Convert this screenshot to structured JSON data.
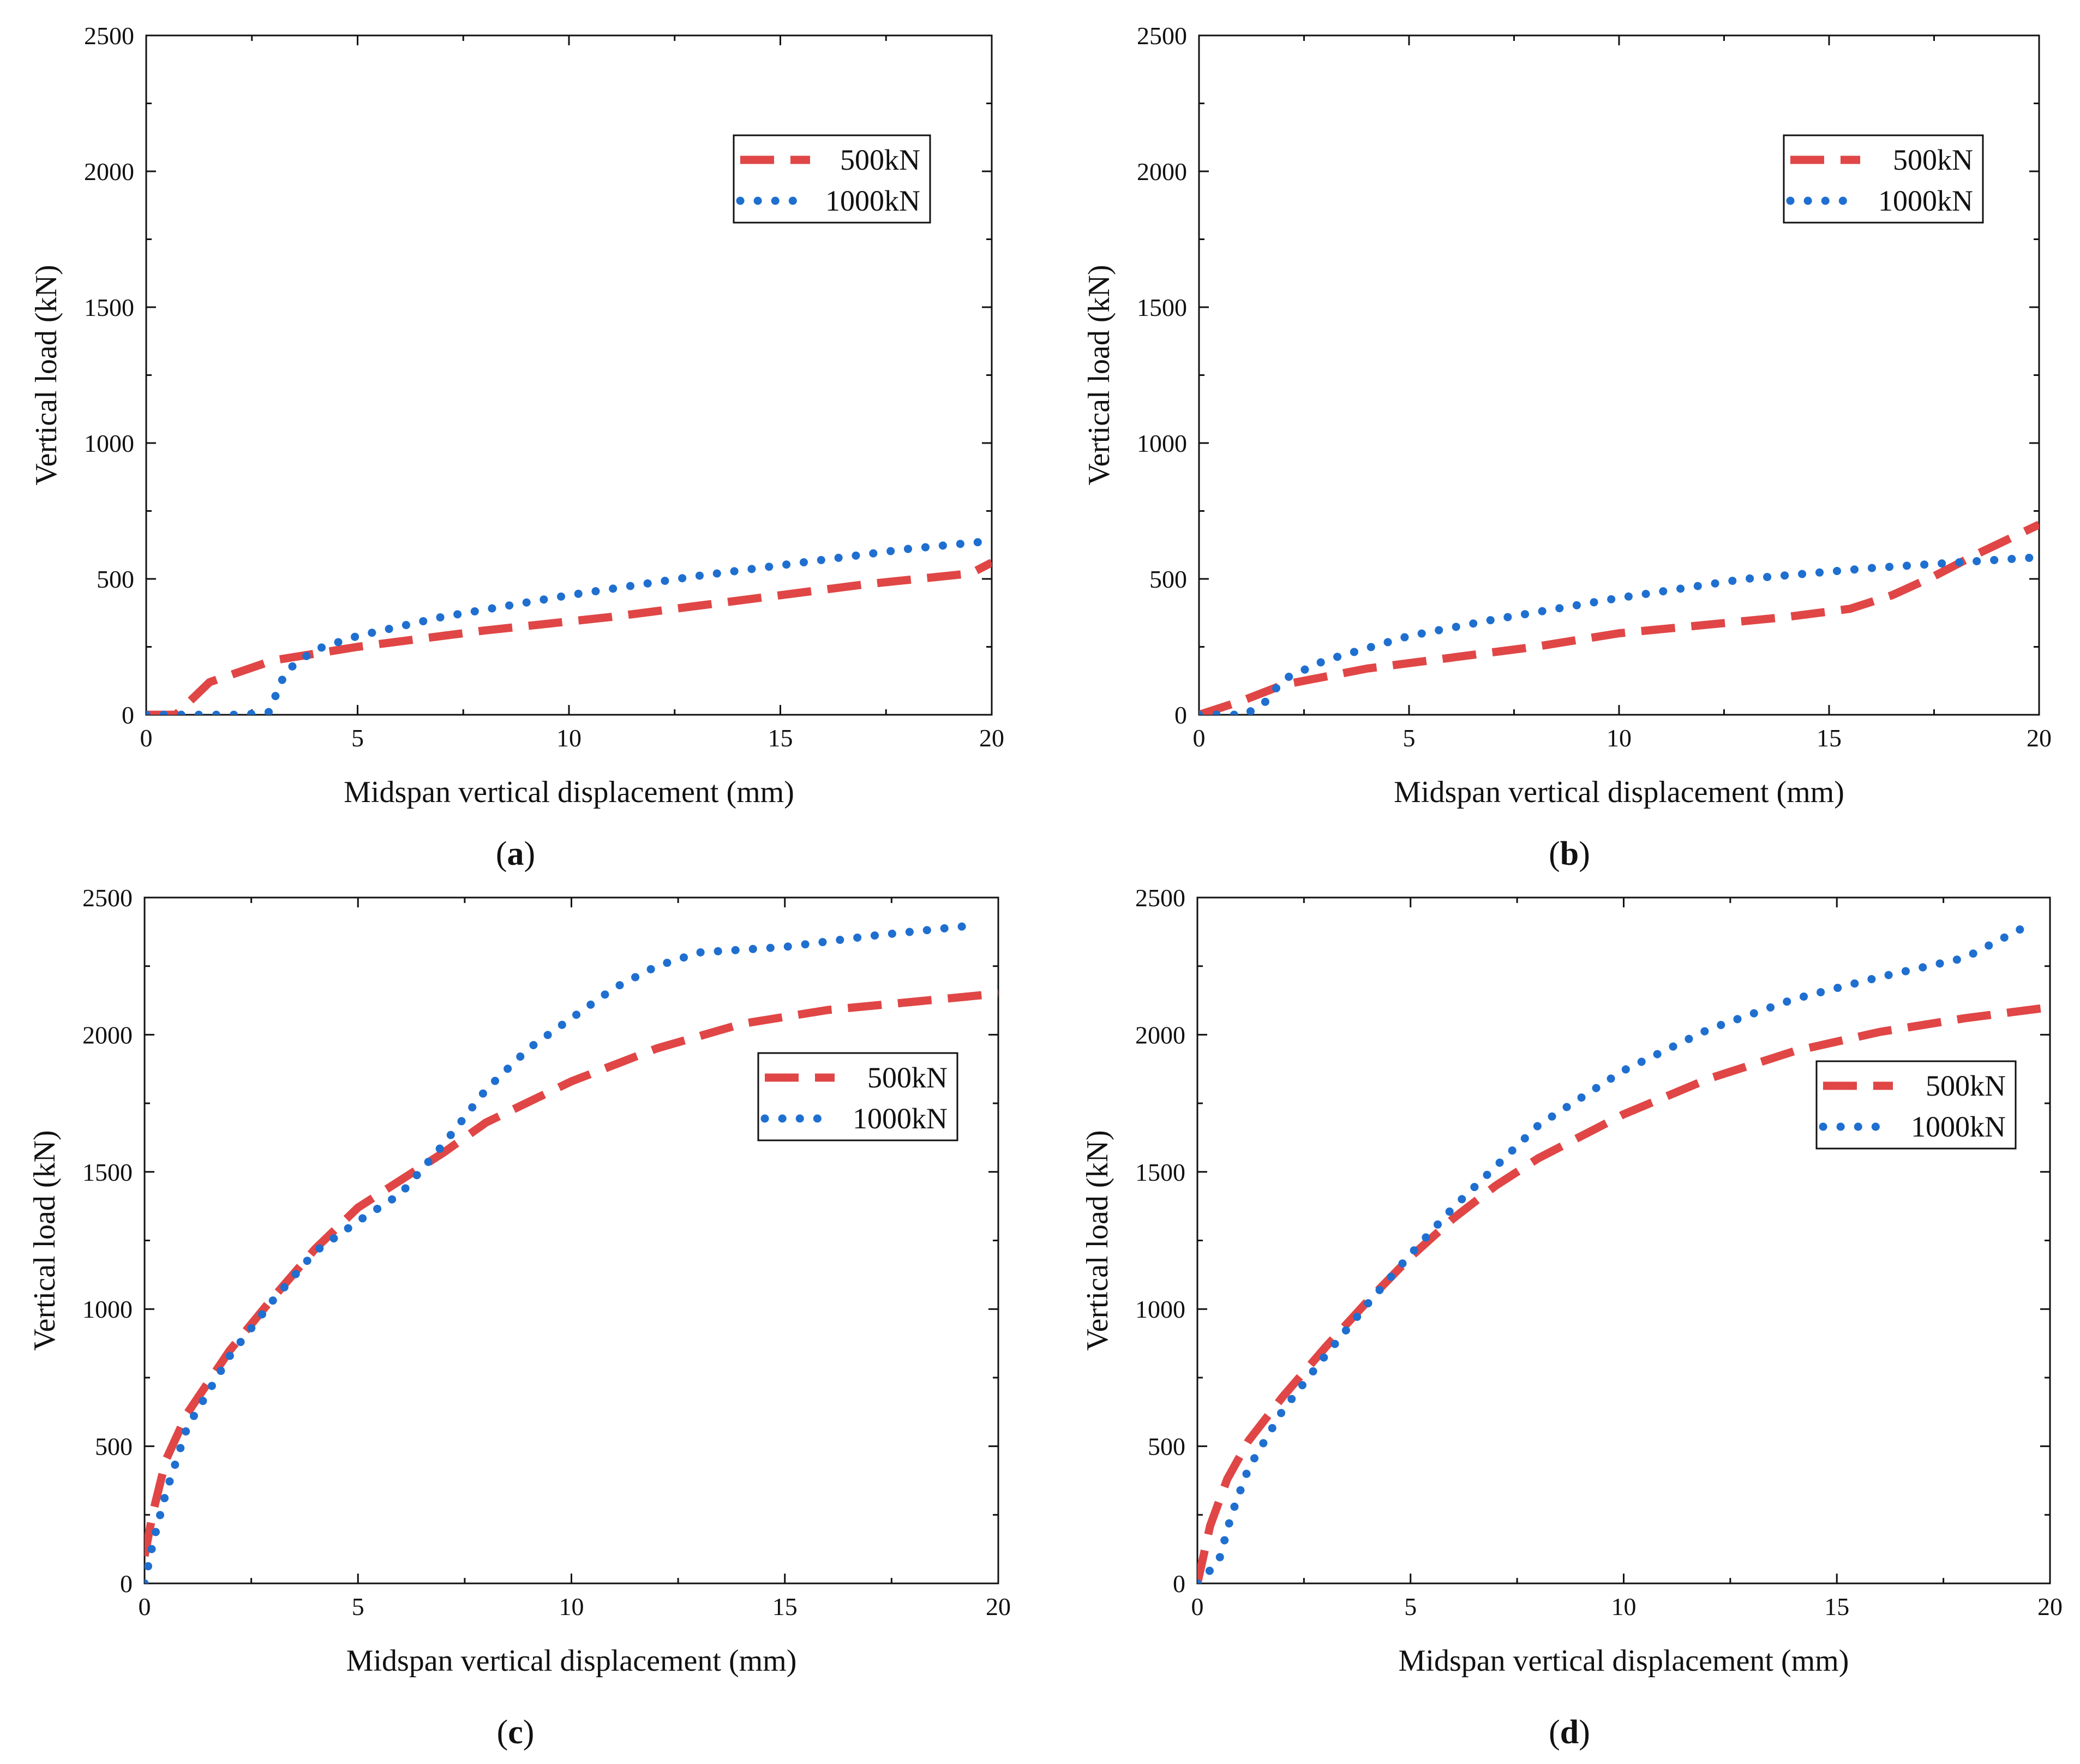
{
  "chart_data": [
    {
      "type": "line",
      "panel": "a",
      "xlabel": "Midspan vertical displacement (mm)",
      "ylabel": "Vertical load (kN)",
      "xlim": [
        0,
        20
      ],
      "ylim": [
        0,
        2500
      ],
      "xticks": [
        0,
        5,
        10,
        15,
        20
      ],
      "yticks": [
        0,
        500,
        1000,
        1500,
        2000,
        2500
      ],
      "legend_position": "top-right",
      "series": [
        {
          "name": "500kN",
          "style": "dashed",
          "color": "#e04646",
          "x": [
            0,
            0.7,
            1.5,
            3,
            5,
            8,
            11,
            14,
            17,
            19.5,
            20
          ],
          "y": [
            0,
            0,
            120,
            200,
            250,
            310,
            360,
            420,
            480,
            520,
            560
          ]
        },
        {
          "name": "1000kN",
          "style": "dotted",
          "color": "#1f6fd0",
          "x": [
            0,
            1,
            2.3,
            2.9,
            3.3,
            4,
            5,
            7,
            10,
            13,
            16,
            18,
            20
          ],
          "y": [
            0,
            0,
            0,
            10,
            160,
            240,
            290,
            360,
            440,
            510,
            570,
            610,
            640
          ]
        }
      ]
    },
    {
      "type": "line",
      "panel": "b",
      "xlabel": "Midspan vertical displacement (mm)",
      "ylabel": "Vertical load (kN)",
      "xlim": [
        0,
        20
      ],
      "ylim": [
        0,
        2500
      ],
      "xticks": [
        0,
        5,
        10,
        15,
        20
      ],
      "yticks": [
        0,
        500,
        1000,
        1500,
        2000,
        2500
      ],
      "legend_position": "top-right",
      "series": [
        {
          "name": "500kN",
          "style": "dashed",
          "color": "#e04646",
          "x": [
            0,
            1,
            2,
            4,
            6,
            8,
            10,
            12,
            14,
            15.5,
            16.5,
            17.5,
            18.5,
            20
          ],
          "y": [
            0,
            50,
            110,
            170,
            210,
            250,
            300,
            330,
            360,
            390,
            440,
            510,
            590,
            700
          ]
        },
        {
          "name": "1000kN",
          "style": "dotted",
          "color": "#1f6fd0",
          "x": [
            0,
            1.1,
            1.6,
            2,
            3,
            5,
            7,
            10,
            13,
            16,
            18,
            20
          ],
          "y": [
            0,
            0,
            50,
            130,
            200,
            290,
            350,
            430,
            500,
            540,
            560,
            580
          ]
        }
      ]
    },
    {
      "type": "line",
      "panel": "c",
      "xlabel": "Midspan vertical displacement (mm)",
      "ylabel": "Vertical load (kN)",
      "xlim": [
        0,
        20
      ],
      "ylim": [
        0,
        2500
      ],
      "xticks": [
        0,
        5,
        10,
        15,
        20
      ],
      "yticks": [
        0,
        500,
        1000,
        1500,
        2000,
        2500
      ],
      "legend_position": "center-right",
      "series": [
        {
          "name": "500kN",
          "style": "dashed",
          "color": "#e04646",
          "x": [
            0,
            0.2,
            0.5,
            1,
            2,
            3,
            4,
            5,
            6,
            7,
            8,
            10,
            12,
            14,
            16,
            18,
            20
          ],
          "y": [
            100,
            260,
            450,
            620,
            850,
            1040,
            1220,
            1370,
            1470,
            1570,
            1680,
            1830,
            1950,
            2040,
            2090,
            2120,
            2150
          ]
        },
        {
          "name": "1000kN",
          "style": "dotted",
          "color": "#1f6fd0",
          "x": [
            0,
            0.2,
            0.5,
            1,
            2,
            3,
            4,
            5,
            6,
            7,
            8,
            9,
            10,
            11,
            12,
            13,
            15,
            17,
            19.5
          ],
          "y": [
            0,
            150,
            330,
            570,
            830,
            1030,
            1210,
            1320,
            1420,
            1600,
            1800,
            1950,
            2060,
            2170,
            2250,
            2300,
            2320,
            2360,
            2400
          ]
        }
      ]
    },
    {
      "type": "line",
      "panel": "d",
      "xlabel": "Midspan vertical displacement (mm)",
      "ylabel": "Vertical load (kN)",
      "xlim": [
        0,
        20
      ],
      "ylim": [
        0,
        2500
      ],
      "xticks": [
        0,
        5,
        10,
        15,
        20
      ],
      "yticks": [
        0,
        500,
        1000,
        1500,
        2000,
        2500
      ],
      "legend_position": "center-right",
      "series": [
        {
          "name": "500kN",
          "style": "dashed",
          "color": "#e04646",
          "x": [
            0,
            0.3,
            0.7,
            1.2,
            2,
            3,
            4,
            5,
            6,
            7,
            8,
            10,
            12,
            14,
            16,
            18,
            20
          ],
          "y": [
            0,
            210,
            380,
            520,
            680,
            860,
            1030,
            1190,
            1330,
            1450,
            1550,
            1710,
            1840,
            1940,
            2010,
            2060,
            2100
          ]
        },
        {
          "name": "1000kN",
          "style": "dotted",
          "color": "#1f6fd0",
          "x": [
            0,
            0.5,
            0.8,
            1.2,
            2,
            3,
            4,
            5,
            6,
            7,
            8,
            10,
            12,
            14,
            16,
            18,
            19.5
          ],
          "y": [
            0,
            80,
            250,
            420,
            630,
            830,
            1020,
            1200,
            1370,
            1520,
            1670,
            1870,
            2020,
            2130,
            2210,
            2280,
            2400
          ]
        }
      ]
    }
  ],
  "panel_labels": [
    "a",
    "b",
    "c",
    "d"
  ],
  "colors": {
    "series_500kN": "#e04646",
    "series_1000kN": "#1f6fd0",
    "axis": "#111111"
  }
}
